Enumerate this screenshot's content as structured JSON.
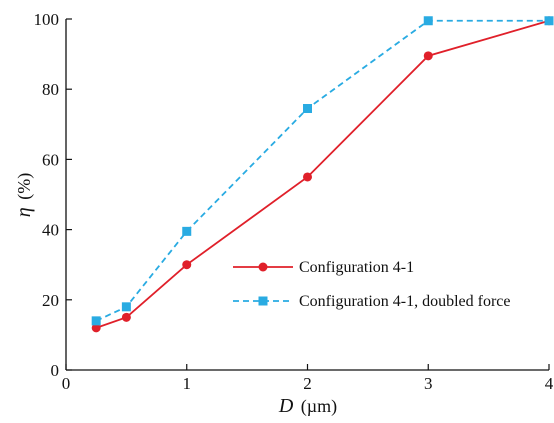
{
  "chart_data": {
    "type": "line",
    "xlabel_symbol": "D",
    "xlabel_unit": "(µm)",
    "ylabel_symbol": "η",
    "ylabel_unit": "(%)",
    "xlim": [
      0,
      4
    ],
    "ylim": [
      0,
      100
    ],
    "xticks": [
      "0",
      "1",
      "2",
      "3",
      "4"
    ],
    "yticks": [
      "0",
      "20",
      "40",
      "60",
      "80",
      "100"
    ],
    "grid": false,
    "legend_position": "lower-right",
    "series": [
      {
        "name": "Configuration 4-1",
        "color": "#e0202a",
        "line_style": "solid",
        "marker": "circle",
        "x": [
          0.25,
          0.5,
          1,
          2,
          3,
          4
        ],
        "y": [
          12,
          15,
          30,
          55,
          89.5,
          99.5
        ]
      },
      {
        "name": "Configuration 4-1, doubled force",
        "color": "#29abe2",
        "line_style": "dashed",
        "marker": "square",
        "x": [
          0.25,
          0.5,
          1,
          2,
          3,
          4
        ],
        "y": [
          14,
          18,
          39.5,
          74.5,
          99.5,
          99.5
        ]
      }
    ]
  }
}
